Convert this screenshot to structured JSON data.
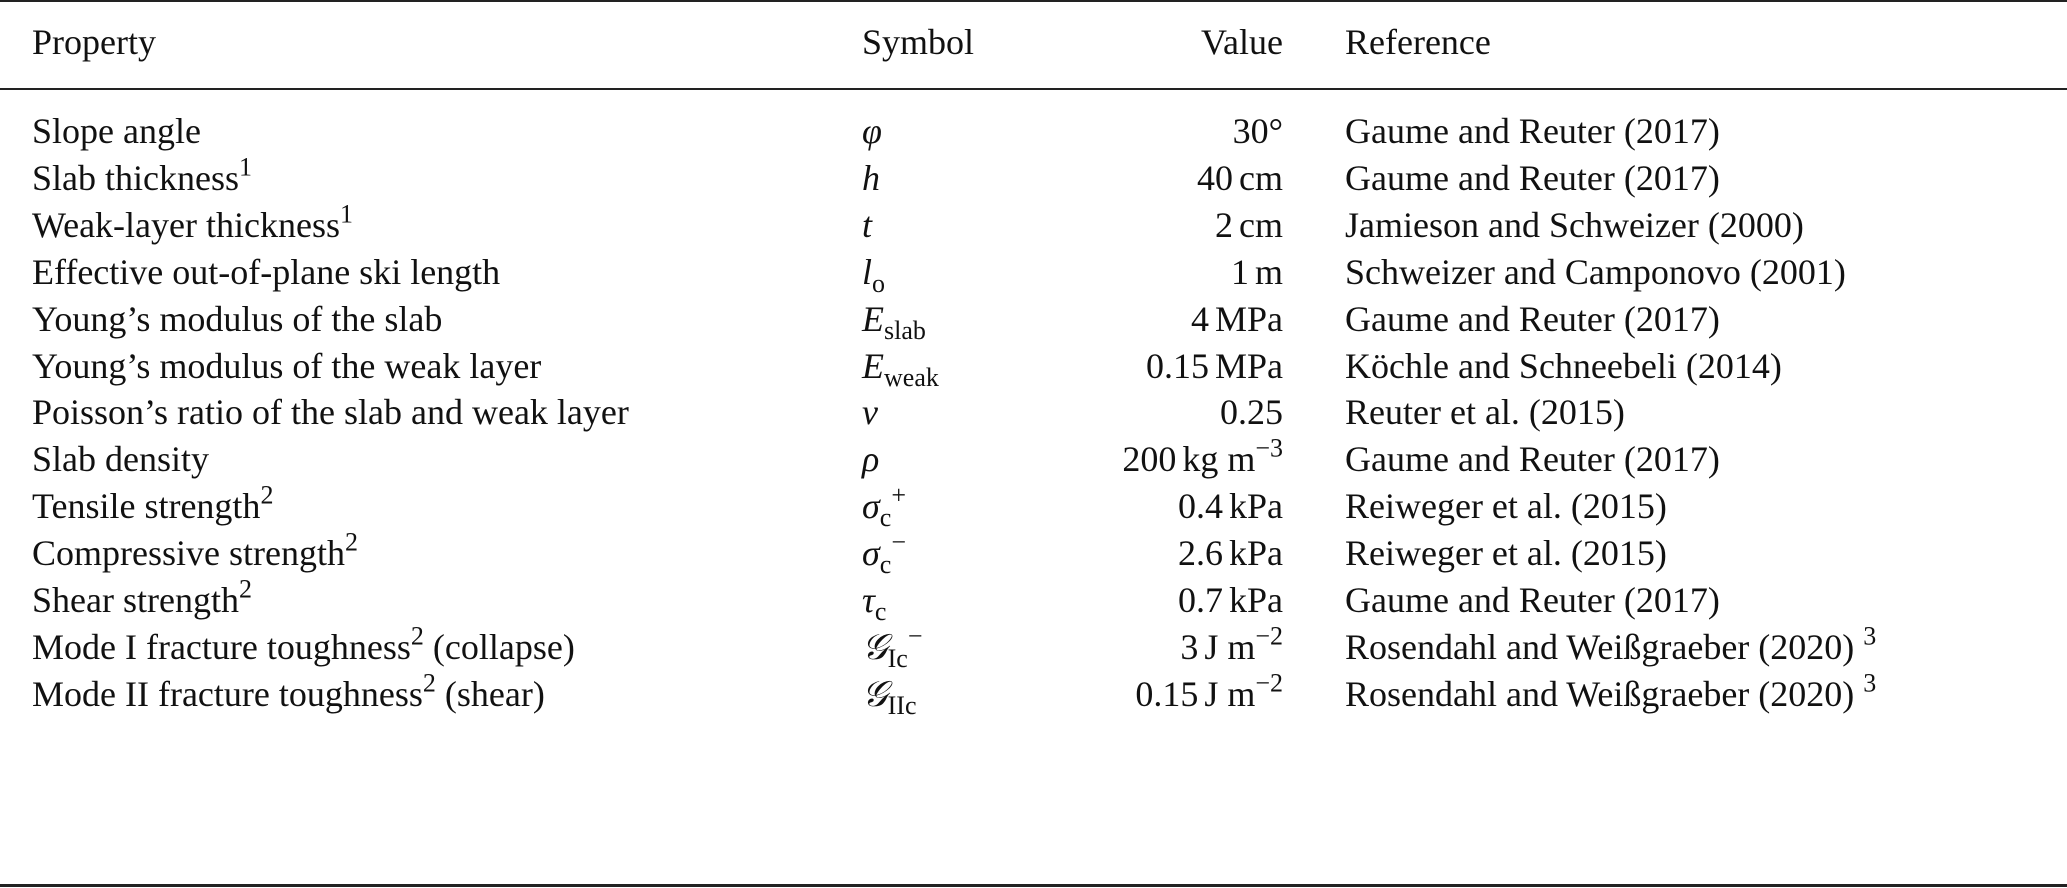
{
  "headers": {
    "property": "Property",
    "symbol": "Symbol",
    "value": "Value",
    "reference": "Reference"
  },
  "rows": [
    {
      "property": "Slope angle",
      "prop_sup": "",
      "prop_suffix": "",
      "symbol": "φ",
      "sym_sub": "",
      "sym_sup": "",
      "value": "30°",
      "unit": "",
      "unit_sup": "",
      "reference": "Gaume and Reuter (2017)",
      "ref_sup": ""
    },
    {
      "property": "Slab thickness",
      "prop_sup": "1",
      "prop_suffix": "",
      "symbol": "h",
      "sym_sub": "",
      "sym_sup": "",
      "value": "40",
      "unit": "cm",
      "unit_sup": "",
      "reference": "Gaume and Reuter (2017)",
      "ref_sup": ""
    },
    {
      "property": "Weak-layer thickness",
      "prop_sup": "1",
      "prop_suffix": "",
      "symbol": "t",
      "sym_sub": "",
      "sym_sup": "",
      "value": "2",
      "unit": "cm",
      "unit_sup": "",
      "reference": "Jamieson and Schweizer (2000)",
      "ref_sup": ""
    },
    {
      "property": "Effective out-of-plane ski length",
      "prop_sup": "",
      "prop_suffix": "",
      "symbol": "l",
      "sym_sub": "o",
      "sym_sup": "",
      "value": "1",
      "unit": "m",
      "unit_sup": "",
      "reference": "Schweizer and Camponovo (2001)",
      "ref_sup": ""
    },
    {
      "property": "Young’s modulus of the slab",
      "prop_sup": "",
      "prop_suffix": "",
      "symbol": "E",
      "sym_sub": "slab",
      "sym_sup": "",
      "value": "4",
      "unit": "MPa",
      "unit_sup": "",
      "reference": "Gaume and Reuter (2017)",
      "ref_sup": ""
    },
    {
      "property": "Young’s modulus of the weak layer",
      "prop_sup": "",
      "prop_suffix": "",
      "symbol": "E",
      "sym_sub": "weak",
      "sym_sup": "",
      "value": "0.15",
      "unit": "MPa",
      "unit_sup": "",
      "reference": "Köchle and Schneebeli (2014)",
      "ref_sup": ""
    },
    {
      "property": "Poisson’s ratio of the slab and weak layer",
      "prop_sup": "",
      "prop_suffix": "",
      "symbol": "ν",
      "sym_sub": "",
      "sym_sup": "",
      "value": "0.25",
      "unit": "",
      "unit_sup": "",
      "reference": "Reuter et al. (2015)",
      "ref_sup": ""
    },
    {
      "property": "Slab density",
      "prop_sup": "",
      "prop_suffix": "",
      "symbol": "ρ",
      "sym_sub": "",
      "sym_sup": "",
      "value": "200",
      "unit": "kg m",
      "unit_sup": "−3",
      "reference": "Gaume and Reuter (2017)",
      "ref_sup": ""
    },
    {
      "property": "Tensile strength",
      "prop_sup": "2",
      "prop_suffix": "",
      "symbol": "σ",
      "sym_sub": "c",
      "sym_sup": "+",
      "value": "0.4",
      "unit": "kPa",
      "unit_sup": "",
      "reference": "Reiweger et al. (2015)",
      "ref_sup": ""
    },
    {
      "property": "Compressive strength",
      "prop_sup": "2",
      "prop_suffix": "",
      "symbol": "σ",
      "sym_sub": "c",
      "sym_sup": "−",
      "value": "2.6",
      "unit": "kPa",
      "unit_sup": "",
      "reference": "Reiweger et al. (2015)",
      "ref_sup": ""
    },
    {
      "property": "Shear strength",
      "prop_sup": "2",
      "prop_suffix": "",
      "symbol": "τ",
      "sym_sub": "c",
      "sym_sup": "",
      "value": "0.7",
      "unit": "kPa",
      "unit_sup": "",
      "reference": "Gaume and Reuter (2017)",
      "ref_sup": ""
    },
    {
      "property": "Mode I fracture toughness",
      "prop_sup": "2",
      "prop_suffix": " (collapse)",
      "symbol": "𝒢",
      "sym_sub": "Ic",
      "sym_sup": "−",
      "value": "3",
      "unit": "J m",
      "unit_sup": "−2",
      "reference": "Rosendahl and Weißgraeber (2020)",
      "ref_sup": "3"
    },
    {
      "property": "Mode II fracture toughness",
      "prop_sup": "2",
      "prop_suffix": " (shear)",
      "symbol": "𝒢",
      "sym_sub": "IIc",
      "sym_sup": "",
      "value": "0.15",
      "unit": "J m",
      "unit_sup": "−2",
      "reference": "Rosendahl and Weißgraeber (2020)",
      "ref_sup": "3"
    }
  ]
}
